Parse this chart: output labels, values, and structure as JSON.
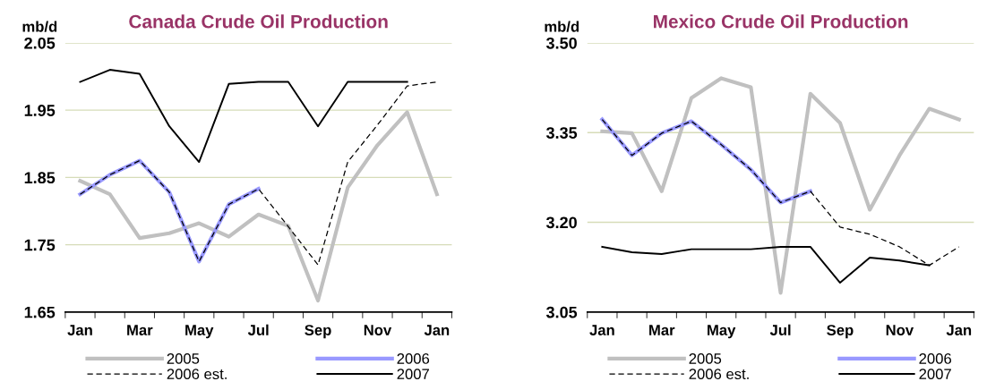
{
  "chart_data": [
    {
      "type": "line",
      "title": "Canada Crude Oil Production",
      "ylabel": "mb/d",
      "categories": [
        "Jan",
        null,
        "Mar",
        null,
        "May",
        null,
        "Jul",
        null,
        "Sep",
        null,
        "Nov",
        null,
        "Jan"
      ],
      "ylim": [
        1.65,
        2.05
      ],
      "yticks": [
        {
          "value": 1.65,
          "label": "1.65"
        },
        1.75,
        1.85,
        1.95,
        2.05
      ],
      "grid": "y",
      "legend": "bottom",
      "series": [
        {
          "name": "2005",
          "color": "#c0c0c0",
          "values": [
            1.845,
            1.825,
            1.76,
            1.767,
            1.782,
            1.762,
            1.795,
            1.778,
            1.667,
            1.835,
            1.898,
            1.947,
            1.825
          ]
        },
        {
          "name": "2006",
          "color": "#9999ff",
          "values": [
            1.825,
            1.854,
            1.875,
            1.828,
            1.725,
            1.81,
            1.833,
            null,
            null,
            null,
            null,
            null,
            null
          ]
        },
        {
          "name": "2006 est.",
          "color": "#000000",
          "line_style": "dashed",
          "values": [
            1.825,
            1.854,
            1.875,
            1.828,
            1.725,
            1.81,
            1.833,
            1.777,
            1.72,
            1.873,
            1.928,
            1.986,
            1.992
          ]
        },
        {
          "name": "2007",
          "color": "#000000",
          "values": [
            1.992,
            2.01,
            2.004,
            1.926,
            1.873,
            1.989,
            1.992,
            1.992,
            1.926,
            1.992,
            1.992,
            1.992,
            null
          ]
        }
      ]
    },
    {
      "type": "line",
      "title": "Mexico Crude Oil Production",
      "ylabel": "mb/d",
      "categories": [
        "Jan",
        null,
        "Mar",
        null,
        "May",
        null,
        "Jul",
        null,
        "Sep",
        null,
        "Nov",
        null,
        "Jan"
      ],
      "ylim": [
        3.05,
        3.5
      ],
      "yticks": [
        3.05,
        {
          "value": 3.2,
          "label": "3.20"
        },
        3.35,
        {
          "value": 3.5,
          "label": "3.50"
        }
      ],
      "grid": "y",
      "legend": "bottom",
      "series": [
        {
          "name": "2005",
          "color": "#c0c0c0",
          "values": [
            3.352,
            3.349,
            3.252,
            3.408,
            3.441,
            3.426,
            3.082,
            3.415,
            3.366,
            3.221,
            3.312,
            3.39,
            3.372
          ]
        },
        {
          "name": "2006",
          "color": "#9999ff",
          "values": [
            3.372,
            3.312,
            3.349,
            3.369,
            3.33,
            3.288,
            3.233,
            3.252,
            null,
            null,
            null,
            null,
            null
          ]
        },
        {
          "name": "2006 est.",
          "color": "#000000",
          "line_style": "dashed",
          "values": [
            3.372,
            3.312,
            3.349,
            3.369,
            3.33,
            3.288,
            3.233,
            3.252,
            3.192,
            3.18,
            3.159,
            3.128,
            3.159
          ]
        },
        {
          "name": "2007",
          "color": "#000000",
          "values": [
            3.159,
            3.15,
            3.147,
            3.155,
            3.155,
            3.155,
            3.159,
            3.159,
            3.099,
            3.141,
            3.136,
            3.128,
            null
          ]
        }
      ]
    }
  ]
}
